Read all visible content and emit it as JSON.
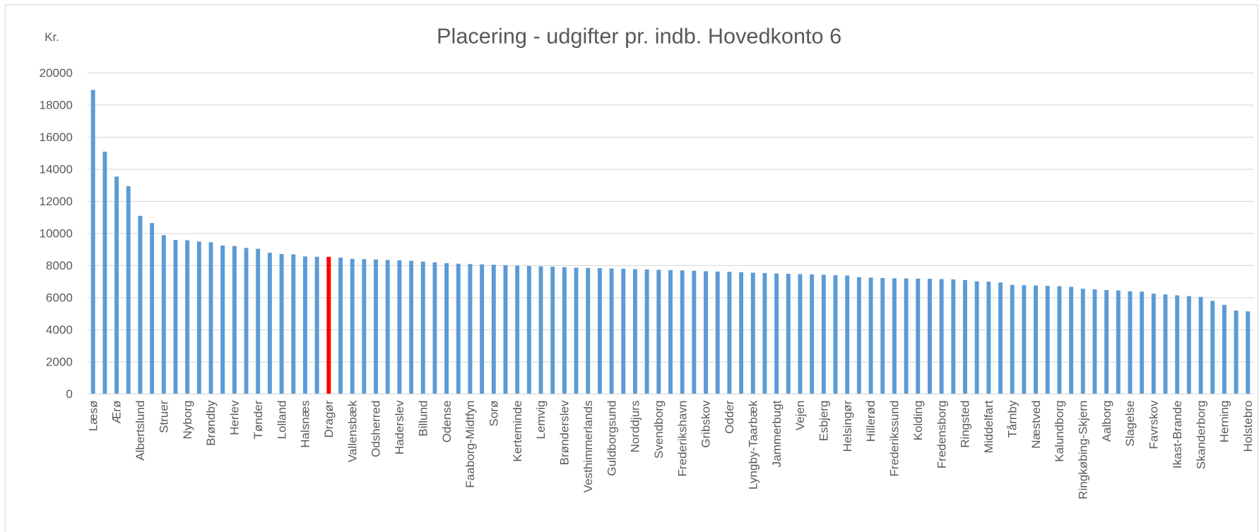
{
  "chart_data": {
    "type": "bar",
    "title": "Placering - udgifter pr. indb. Hovedkonto 6",
    "y_label": "Kr.",
    "categories": [
      "Læsø",
      null,
      "Ærø",
      null,
      "Albertslund",
      null,
      "Struer",
      null,
      "Nyborg",
      null,
      "Brøndby",
      null,
      "Herlev",
      null,
      "Tønder",
      null,
      "Lolland",
      null,
      "Halsnæs",
      null,
      "Dragør",
      null,
      "Vallensbæk",
      null,
      "Odsherred",
      null,
      "Haderslev",
      null,
      "Billund",
      null,
      "Odense",
      null,
      "Faaborg-Midtfyn",
      null,
      "Sorø",
      null,
      "Kerteminde",
      null,
      "Lemvig",
      null,
      "Brønderslev",
      null,
      "Vesthimmerlands",
      null,
      "Guldborgsund",
      null,
      "Norddjurs",
      null,
      "Svendborg",
      null,
      "Frederikshavn",
      null,
      "Gribskov",
      null,
      "Odder",
      null,
      "Lyngby-Taarbæk",
      null,
      "Jammerbugt",
      null,
      "Vejen",
      null,
      "Esbjerg",
      null,
      "Helsingør",
      null,
      "Hillerød",
      null,
      "Frederikssund",
      null,
      "Kolding",
      null,
      "Fredensborg",
      null,
      "Ringsted",
      null,
      "Middelfart",
      null,
      "Tårnby",
      null,
      "Næstved",
      null,
      "Kalundborg",
      null,
      "Ringkøbing-Skjern",
      null,
      "Aalborg",
      null,
      "Slagelse",
      null,
      "Favrskov",
      null,
      "Ikast-Brande",
      null,
      "Skanderborg",
      null,
      "Herning",
      null,
      "Holstebro"
    ],
    "values": [
      18950,
      15100,
      13550,
      12950,
      11100,
      10650,
      9900,
      9600,
      9580,
      9500,
      9450,
      9250,
      9220,
      9100,
      9050,
      8800,
      8720,
      8700,
      8570,
      8550,
      8550,
      8500,
      8420,
      8400,
      8380,
      8350,
      8330,
      8300,
      8250,
      8200,
      8150,
      8120,
      8100,
      8080,
      8050,
      8030,
      8000,
      7980,
      7950,
      7930,
      7900,
      7870,
      7850,
      7840,
      7820,
      7800,
      7780,
      7760,
      7740,
      7720,
      7700,
      7680,
      7650,
      7630,
      7610,
      7590,
      7560,
      7540,
      7510,
      7490,
      7470,
      7450,
      7430,
      7400,
      7380,
      7280,
      7250,
      7230,
      7210,
      7200,
      7190,
      7180,
      7160,
      7140,
      7100,
      7020,
      7000,
      6950,
      6800,
      6780,
      6760,
      6740,
      6720,
      6680,
      6560,
      6520,
      6480,
      6450,
      6400,
      6380,
      6250,
      6200,
      6150,
      6100,
      6050,
      5800,
      5550,
      5200,
      5150
    ],
    "color": "#5b9bd5",
    "highlight": {
      "index": 20,
      "color": "#ff0000"
    },
    "ylim": [
      0,
      20000
    ],
    "yticks": [
      0,
      2000,
      4000,
      6000,
      8000,
      10000,
      12000,
      14000,
      16000,
      18000,
      20000
    ],
    "grid": true
  }
}
